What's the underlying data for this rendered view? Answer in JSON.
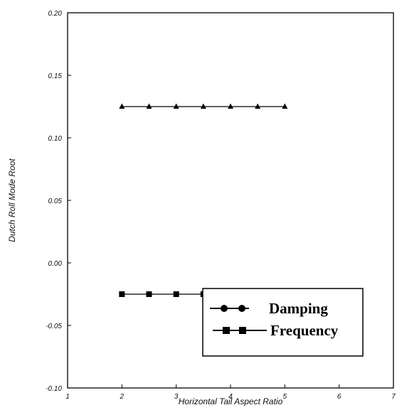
{
  "chart_data": {
    "type": "line",
    "title": "",
    "xlabel": "Horizontal Tail Aspect Ratio",
    "ylabel": "Dutch Roll Mode Root",
    "xlim": [
      1,
      7
    ],
    "ylim": [
      -0.1,
      0.2
    ],
    "x_ticks": [
      "1",
      "2",
      "3",
      "4",
      "5",
      "6",
      "7"
    ],
    "y_ticks": [
      "0.20",
      "0.15",
      "0.10",
      "0.05",
      "0.00",
      "-0.05",
      "-0.10"
    ],
    "x": [
      2,
      2.5,
      3,
      3.5,
      4,
      4.5,
      5
    ],
    "series": [
      {
        "name": "Damping",
        "marker": "circle",
        "values": [
          0.125,
          0.125,
          0.125,
          0.125,
          0.125,
          0.125,
          0.125
        ]
      },
      {
        "name": "Frequency",
        "marker": "square",
        "values": [
          -0.025,
          -0.025,
          -0.025,
          -0.025,
          -0.025,
          -0.025,
          -0.025
        ]
      }
    ],
    "legend_position": "bottom-right",
    "grid": false,
    "line_color": "#000000"
  }
}
